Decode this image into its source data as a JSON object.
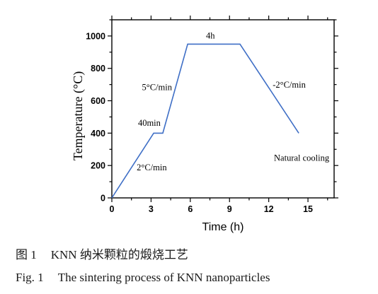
{
  "chart_data": {
    "type": "line",
    "xlabel": "Time (h)",
    "ylabel": "Temperature (°C)",
    "xlim": [
      0,
      17
    ],
    "ylim": [
      0,
      1100
    ],
    "xticks": [
      0,
      3,
      6,
      9,
      12,
      15
    ],
    "yticks": [
      0,
      200,
      400,
      600,
      800,
      1000
    ],
    "grid": false,
    "series": [
      {
        "x": [
          0,
          3.2,
          3.9,
          5.8,
          9.8,
          14.3
        ],
        "y": [
          0,
          400,
          400,
          950,
          950,
          400
        ],
        "color": "#3f6fc6"
      }
    ],
    "annotations": [
      {
        "text": "2°C/min",
        "x": 1.9,
        "y": 170
      },
      {
        "text": "40min",
        "x": 2.0,
        "y": 445
      },
      {
        "text": "5°C/min",
        "x": 2.3,
        "y": 665
      },
      {
        "text": "4h",
        "x": 7.2,
        "y": 985
      },
      {
        "text": "-2°C/min",
        "x": 12.3,
        "y": 680
      },
      {
        "text": "Natural cooling",
        "x": 12.4,
        "y": 230
      }
    ]
  },
  "captions": {
    "cn_label": "图 1",
    "cn_text": "KNN 纳米颗粒的煅烧工艺",
    "en_label": "Fig. 1",
    "en_text": "The sintering process of KNN nanoparticles"
  }
}
